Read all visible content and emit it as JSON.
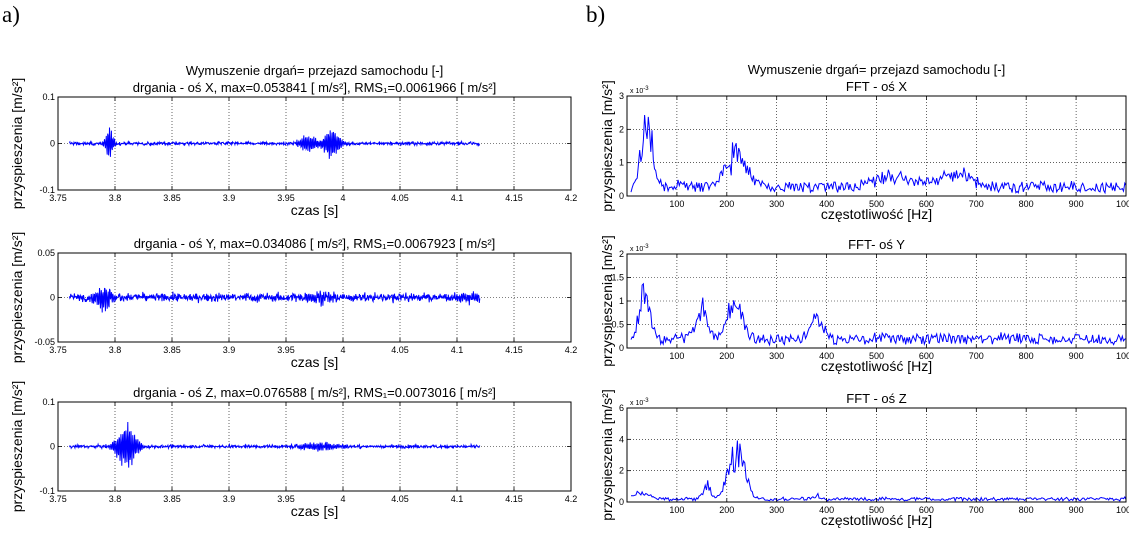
{
  "panels": {
    "a": "a)",
    "b": "b)"
  },
  "colors": {
    "signal": "#0000ff",
    "grid": "#000000",
    "axes": "#000000"
  },
  "chart_data": [
    {
      "type": "line",
      "id": "a1",
      "suptitle": "Wymuszenie drgań= przejazd samochodu [-]",
      "title": "drgania - oś X,  max=0.053841 [ m/s²], RMS₁=0.0061966 [ m/s²]",
      "xlabel": "czas [s]",
      "ylabel": "przyspieszenia [m/s²]",
      "xlim": [
        3.75,
        4.2
      ],
      "ylim": [
        -0.1,
        0.1
      ],
      "xticks": [
        3.75,
        3.8,
        3.85,
        3.9,
        3.95,
        4,
        4.05,
        4.1,
        4.15,
        4.2
      ],
      "xtick_labels": [
        "3.75",
        "3.8",
        "3.85",
        "3.9",
        "3.95",
        "4",
        "4.05",
        "4.1",
        "4.15",
        "4.2"
      ],
      "yticks": [
        -0.1,
        0,
        0.1
      ],
      "ytick_labels": [
        "-0.1",
        "0",
        "0.1"
      ],
      "grid": true,
      "signal": {
        "x_start": 3.76,
        "x_end": 4.12,
        "noise": 0.012,
        "bursts": [
          [
            3.795,
            0.035,
            0.004
          ],
          [
            3.99,
            0.038,
            0.008
          ],
          [
            3.97,
            0.02,
            0.01
          ]
        ]
      }
    },
    {
      "type": "line",
      "id": "a2",
      "title": "drgania - oś Y,  max=0.034086 [ m/s²], RMS₁=0.0067923 [ m/s²]",
      "xlabel": "czas [s]",
      "ylabel": "przyspieszenia [m/s²]",
      "xlim": [
        3.75,
        4.2
      ],
      "ylim": [
        -0.05,
        0.05
      ],
      "xticks": [
        3.75,
        3.8,
        3.85,
        3.9,
        3.95,
        4,
        4.05,
        4.1,
        4.15,
        4.2
      ],
      "xtick_labels": [
        "3.75",
        "3.8",
        "3.85",
        "3.9",
        "3.95",
        "4",
        "4.05",
        "4.1",
        "4.15",
        "4.2"
      ],
      "yticks": [
        -0.05,
        0,
        0.05
      ],
      "ytick_labels": [
        "-0.05",
        "0",
        "0.05"
      ],
      "grid": true,
      "signal": {
        "x_start": 3.76,
        "x_end": 4.12,
        "noise": 0.016,
        "bursts": [
          [
            3.79,
            0.016,
            0.008
          ],
          [
            3.98,
            0.006,
            0.015
          ],
          [
            4.11,
            0.006,
            0.01
          ]
        ]
      }
    },
    {
      "type": "line",
      "id": "a3",
      "title": "drgania - oś Z,  max=0.076588 [ m/s²], RMS₁=0.0073016 [ m/s²]",
      "xlabel": "czas [s]",
      "ylabel": "przyspieszenia [m/s²]",
      "xlim": [
        3.75,
        4.2
      ],
      "ylim": [
        -0.1,
        0.1
      ],
      "xticks": [
        3.75,
        3.8,
        3.85,
        3.9,
        3.95,
        4,
        4.05,
        4.1,
        4.15,
        4.2
      ],
      "xtick_labels": [
        "3.75",
        "3.8",
        "3.85",
        "3.9",
        "3.95",
        "4",
        "4.05",
        "4.1",
        "4.15",
        "4.2"
      ],
      "yticks": [
        -0.1,
        0,
        0.1
      ],
      "ytick_labels": [
        "-0.1",
        "0",
        "0.1"
      ],
      "grid": true,
      "signal": {
        "x_start": 3.76,
        "x_end": 4.12,
        "noise": 0.012,
        "bursts": [
          [
            3.81,
            0.055,
            0.01
          ],
          [
            3.98,
            0.01,
            0.02
          ]
        ]
      }
    },
    {
      "type": "line",
      "id": "b1",
      "suptitle": "Wymuszenie drgań= przejazd samochodu [-]",
      "title": "FFT - oś X",
      "xlabel": "częstotliwość [Hz]",
      "ylabel": "przyspieszenia [m/s²]",
      "xlim": [
        0,
        1000
      ],
      "ylim": [
        0,
        3
      ],
      "scale_note": "x 10",
      "scale_exp": "-3",
      "xticks": [
        100,
        200,
        300,
        400,
        500,
        600,
        700,
        800,
        900,
        1000
      ],
      "xtick_labels": [
        "100",
        "200",
        "300",
        "400",
        "500",
        "600",
        "700",
        "800",
        "900",
        "1000"
      ],
      "yticks": [
        0,
        1,
        2,
        3
      ],
      "ytick_labels": [
        "0",
        "1",
        "2",
        "3"
      ],
      "grid": true,
      "spectrum": {
        "floor": 0.3,
        "noise": 0.35,
        "peaks": [
          [
            40,
            2.6,
            15
          ],
          [
            220,
            1.3,
            30
          ],
          [
            540,
            0.4,
            60
          ],
          [
            660,
            0.6,
            40
          ]
        ]
      }
    },
    {
      "type": "line",
      "id": "b2",
      "title": "FFT- oś Y",
      "xlabel": "częstotliwość [Hz]",
      "ylabel": "przyspieszenia [m/s²]",
      "xlim": [
        0,
        1000
      ],
      "ylim": [
        0,
        2
      ],
      "scale_note": "x 10",
      "scale_exp": "-3",
      "xticks": [
        100,
        200,
        300,
        400,
        500,
        600,
        700,
        800,
        900,
        1000
      ],
      "xtick_labels": [
        "100",
        "200",
        "300",
        "400",
        "500",
        "600",
        "700",
        "800",
        "900",
        "1000"
      ],
      "yticks": [
        0,
        0.5,
        1,
        1.5,
        2
      ],
      "ytick_labels": [
        "0",
        "0.5",
        "1",
        "1.5",
        "2"
      ],
      "grid": true,
      "spectrum": {
        "floor": 0.2,
        "noise": 0.3,
        "peaks": [
          [
            35,
            1.3,
            15
          ],
          [
            150,
            1.0,
            15
          ],
          [
            215,
            1.0,
            20
          ],
          [
            380,
            0.5,
            20
          ]
        ]
      }
    },
    {
      "type": "line",
      "id": "b3",
      "title": "FFT - oś Z",
      "xlabel": "częstotliwość [Hz]",
      "ylabel": "przyspieszenia [m/s²]",
      "xlim": [
        0,
        1000
      ],
      "ylim": [
        0,
        6
      ],
      "scale_note": "x 10",
      "scale_exp": "-3",
      "xticks": [
        100,
        200,
        300,
        400,
        500,
        600,
        700,
        800,
        900,
        1000
      ],
      "xtick_labels": [
        "100",
        "200",
        "300",
        "400",
        "500",
        "600",
        "700",
        "800",
        "900",
        "1000"
      ],
      "yticks": [
        0,
        2,
        4,
        6
      ],
      "ytick_labels": [
        "0",
        "2",
        "4",
        "6"
      ],
      "grid": true,
      "spectrum": {
        "floor": 0.2,
        "noise": 0.3,
        "peaks": [
          [
            30,
            0.6,
            20
          ],
          [
            220,
            4.0,
            22
          ],
          [
            160,
            1.2,
            10
          ],
          [
            380,
            0.3,
            10
          ]
        ]
      }
    }
  ]
}
